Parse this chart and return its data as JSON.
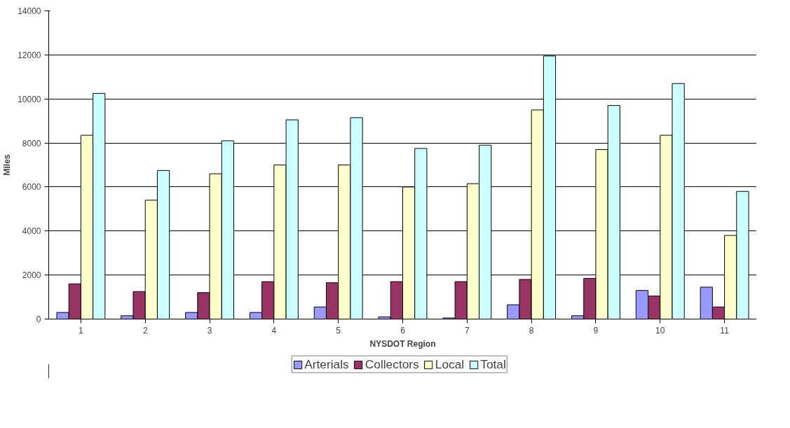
{
  "chart_data": {
    "type": "bar",
    "xlabel": "NYSDOT Region",
    "ylabel": "Miles",
    "categories": [
      "1",
      "2",
      "3",
      "4",
      "5",
      "6",
      "7",
      "8",
      "9",
      "10",
      "11"
    ],
    "series": [
      {
        "name": "Arterials",
        "color": "#9999ff",
        "values": [
          300,
          150,
          300,
          300,
          550,
          100,
          50,
          650,
          150,
          1300,
          1450
        ]
      },
      {
        "name": "Collectors",
        "color": "#993366",
        "values": [
          1600,
          1250,
          1200,
          1700,
          1650,
          1700,
          1700,
          1800,
          1850,
          1050,
          550
        ]
      },
      {
        "name": "Local",
        "color": "#ffffcc",
        "values": [
          8350,
          5400,
          6600,
          7000,
          7000,
          6000,
          6150,
          9500,
          7700,
          8350,
          3800
        ]
      },
      {
        "name": "Total",
        "color": "#ccffff",
        "values": [
          10250,
          6750,
          8100,
          9050,
          9150,
          7750,
          7900,
          11950,
          9700,
          10700,
          5800
        ]
      }
    ],
    "ylim": [
      0,
      14000
    ],
    "yticks": [
      0,
      2000,
      4000,
      6000,
      8000,
      10000,
      12000,
      14000
    ],
    "grid": "y",
    "legend": "bottom"
  }
}
